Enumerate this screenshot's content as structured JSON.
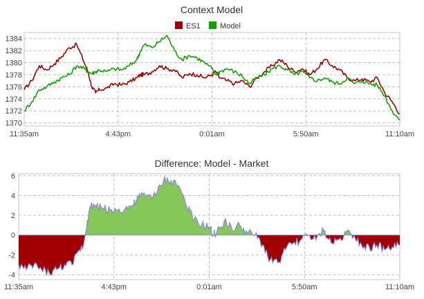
{
  "colors": {
    "es1": "#a00000",
    "model": "#12a000",
    "diff_pos_fill": "#86c75a",
    "diff_neg_fill": "#a00000",
    "diff_line": "#8888dd",
    "grid": "#bdbdbd"
  },
  "chart_data": [
    {
      "type": "line",
      "title": "Context Model",
      "legend": {
        "placement": "top-center",
        "entries": [
          "ES1",
          "Model"
        ]
      },
      "x_ticks": [
        "11:35am",
        "4:43pm",
        "0:01am",
        "5:50am",
        "11:10am"
      ],
      "y_ticks": [
        1370,
        1372,
        1374,
        1376,
        1378,
        1380,
        1382,
        1384
      ],
      "ylim": [
        1369.5,
        1385
      ],
      "grid": true,
      "x": [
        0,
        2,
        4,
        6,
        8,
        10,
        12,
        14,
        16,
        17,
        18,
        19,
        20,
        22,
        24,
        26,
        28,
        30,
        31,
        32,
        34,
        36,
        38,
        40,
        42,
        44,
        46,
        48,
        50,
        51,
        52,
        54,
        56,
        58,
        60,
        62,
        64,
        66,
        68,
        70,
        72,
        74,
        76,
        78,
        80,
        82,
        84,
        86,
        88,
        90,
        92,
        94,
        96,
        98,
        100
      ],
      "series": [
        {
          "name": "ES1",
          "color": "#a00000",
          "values": [
            1375.5,
            1377.0,
            1379.5,
            1378.8,
            1379.8,
            1381.0,
            1382.5,
            1383.0,
            1380.0,
            1378.5,
            1376.0,
            1375.0,
            1375.5,
            1375.8,
            1376.5,
            1376.3,
            1376.8,
            1377.5,
            1378.0,
            1378.0,
            1378.5,
            1379.5,
            1379.0,
            1378.8,
            1377.5,
            1378.2,
            1378.0,
            1377.5,
            1378.0,
            1378.5,
            1377.5,
            1377.0,
            1376.5,
            1377.0,
            1376.0,
            1377.5,
            1378.5,
            1379.5,
            1380.5,
            1379.5,
            1378.5,
            1379.0,
            1378.0,
            1379.0,
            1380.5,
            1379.5,
            1378.8,
            1377.5,
            1377.0,
            1377.3,
            1376.8,
            1377.5,
            1375.0,
            1373.5,
            1371.5
          ]
        },
        {
          "name": "Model",
          "color": "#12a000",
          "values": [
            1372.0,
            1373.5,
            1375.5,
            1376.0,
            1376.8,
            1377.5,
            1378.0,
            1379.5,
            1379.0,
            1378.5,
            1378.2,
            1378.5,
            1378.8,
            1378.5,
            1379.0,
            1378.8,
            1379.5,
            1380.5,
            1382.0,
            1383.0,
            1382.5,
            1383.5,
            1384.5,
            1382.0,
            1380.5,
            1381.2,
            1380.8,
            1380.0,
            1379.0,
            1378.0,
            1378.5,
            1379.0,
            1378.5,
            1377.8,
            1376.5,
            1377.5,
            1378.0,
            1379.0,
            1379.5,
            1378.8,
            1378.0,
            1378.5,
            1377.5,
            1377.0,
            1377.5,
            1376.8,
            1376.5,
            1377.5,
            1376.5,
            1377.0,
            1376.5,
            1376.3,
            1374.5,
            1372.0,
            1370.5
          ]
        }
      ]
    },
    {
      "type": "area",
      "title": "Difference: Model - Market",
      "x_ticks": [
        "11:35am",
        "4:43pm",
        "0:01am",
        "5:50am",
        "11:10am"
      ],
      "y_ticks": [
        -4,
        -2,
        0,
        2,
        4,
        6
      ],
      "ylim": [
        -4.5,
        6.2
      ],
      "grid": true,
      "x": [
        0,
        2,
        4,
        6,
        8,
        10,
        12,
        14,
        16,
        17,
        18,
        19,
        20,
        22,
        24,
        26,
        28,
        30,
        31,
        32,
        34,
        36,
        38,
        40,
        42,
        44,
        46,
        48,
        50,
        51,
        52,
        54,
        56,
        58,
        60,
        62,
        64,
        66,
        68,
        70,
        72,
        74,
        76,
        78,
        80,
        82,
        84,
        86,
        88,
        90,
        92,
        94,
        96,
        98,
        100
      ],
      "series": [
        {
          "name": "",
          "values": [
            -3.0,
            -3.5,
            -3.0,
            -3.5,
            -3.8,
            -3.5,
            -3.0,
            -3.0,
            -1.5,
            -1.0,
            1.5,
            3.0,
            3.0,
            2.7,
            2.5,
            2.5,
            2.7,
            3.0,
            3.5,
            4.0,
            4.0,
            4.0,
            5.5,
            5.5,
            5.0,
            3.0,
            1.5,
            1.0,
            0.8,
            0.0,
            0.3,
            1.5,
            0.5,
            1.0,
            0.2,
            0.0,
            -1.0,
            -2.5,
            -2.8,
            -1.5,
            -0.8,
            -0.5,
            0.0,
            -0.5,
            0.5,
            -0.8,
            -0.5,
            0.3,
            0.0,
            -1.0,
            -1.2,
            -1.0,
            -1.5,
            -1.2,
            -1.0
          ]
        }
      ]
    }
  ]
}
